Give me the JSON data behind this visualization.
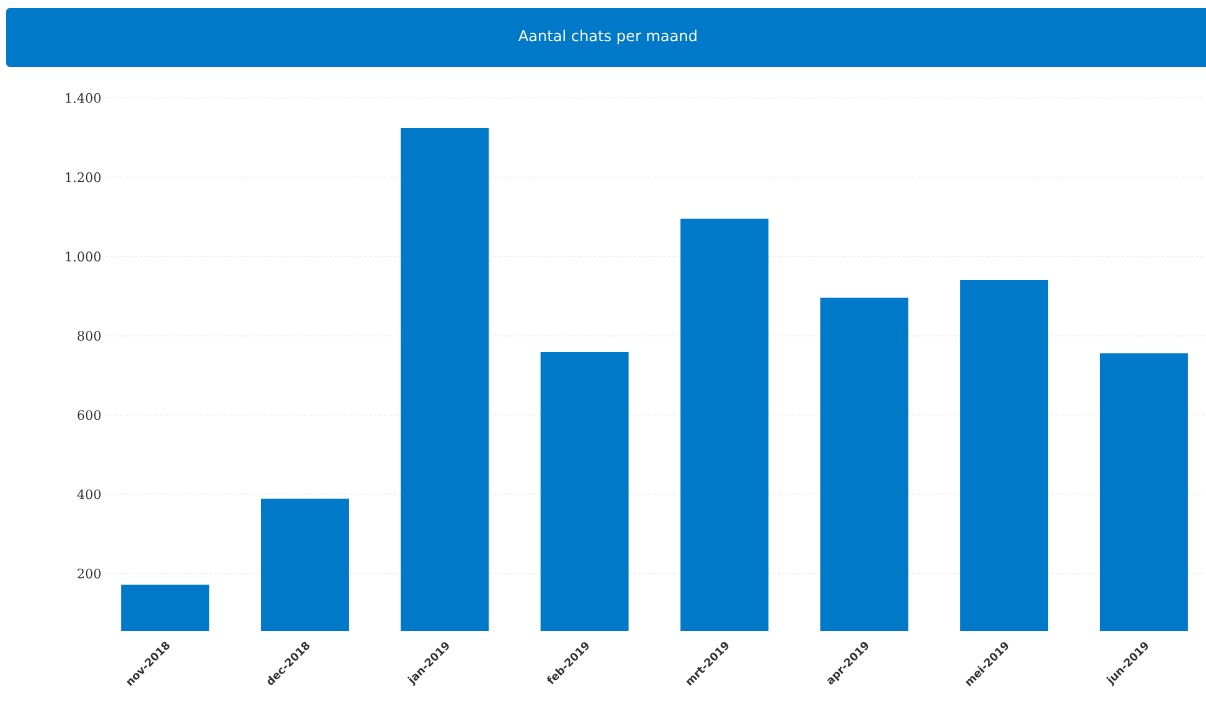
{
  "chart_data": {
    "type": "bar",
    "title": "Aantal chats per maand",
    "categories": [
      "nov-2018",
      "dec-2018",
      "jan-2019",
      "feb-2019",
      "mrt-2019",
      "apr-2019",
      "mei-2019",
      "jun-2019"
    ],
    "values": [
      172,
      389,
      1324,
      759,
      1095,
      896,
      941,
      756
    ],
    "color": "#0079c8",
    "ylim": [
      55,
      1400
    ],
    "yticks": [
      {
        "value": 200,
        "label": "200"
      },
      {
        "value": 400,
        "label": "400"
      },
      {
        "value": 600,
        "label": "600"
      },
      {
        "value": 800,
        "label": "800"
      },
      {
        "value": 1000,
        "label": "1.000"
      },
      {
        "value": 1200,
        "label": "1.200"
      },
      {
        "value": 1400,
        "label": "1.400"
      }
    ],
    "grid": "y"
  }
}
